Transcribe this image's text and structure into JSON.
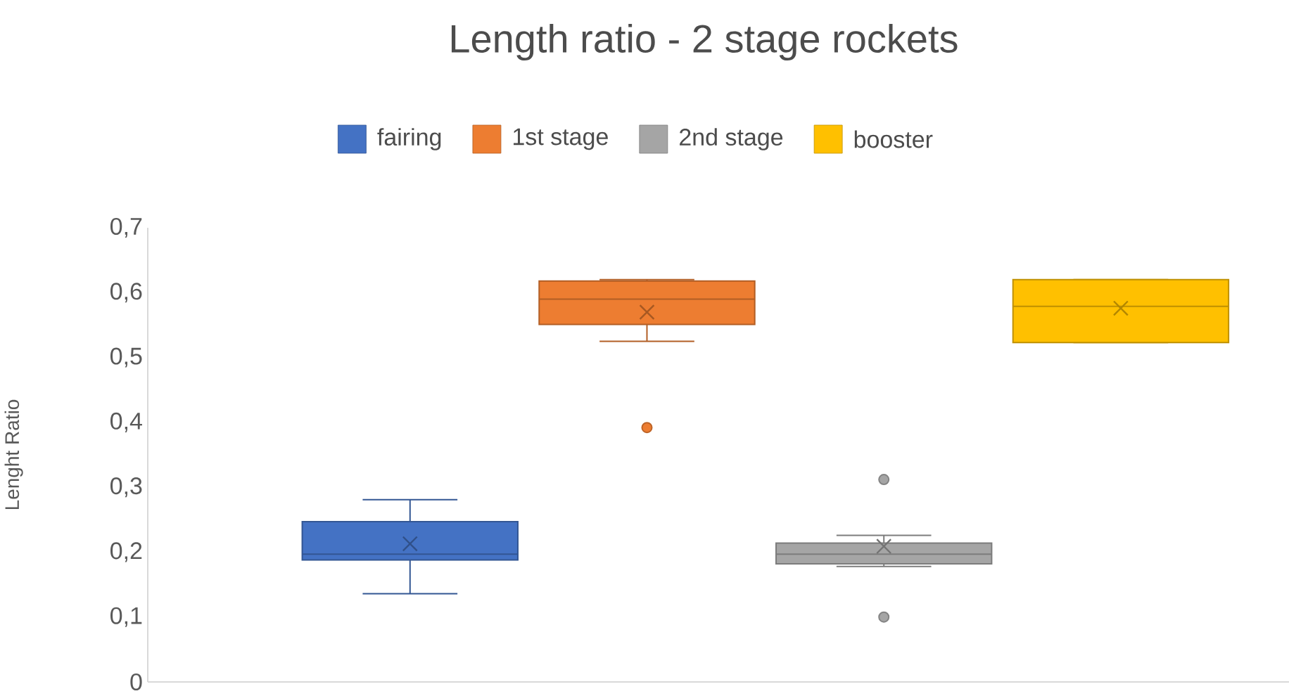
{
  "chart_data": {
    "type": "box",
    "title": "Length ratio - 2 stage rockets",
    "ylabel": "Lenght Ratio",
    "categories": [
      null
    ],
    "series": [
      {
        "name": "fairing",
        "color": "#4472c4",
        "boxes": [
          {
            "low": 0.136,
            "q1": 0.188,
            "median": 0.197,
            "q3": 0.247,
            "high": 0.281,
            "mean": 0.213
          }
        ]
      },
      {
        "name": "1st stage",
        "color": "#ed7d31",
        "boxes": [
          {
            "low": 0.525,
            "q1": 0.551,
            "median": 0.59,
            "q3": 0.618,
            "high": 0.62,
            "mean": 0.57,
            "outliers": [
              0.392
            ]
          }
        ]
      },
      {
        "name": "2nd stage",
        "color": "#a5a5a5",
        "boxes": [
          {
            "low": 0.178,
            "q1": 0.182,
            "median": 0.197,
            "q3": 0.214,
            "high": 0.226,
            "mean": 0.209,
            "outliers": [
              0.312,
              0.1
            ]
          }
        ]
      },
      {
        "name": "booster",
        "color": "#ffc000",
        "boxes": [
          {
            "low": 0.523,
            "q1": 0.523,
            "median": 0.579,
            "q3": 0.62,
            "high": 0.62,
            "mean": 0.576
          }
        ]
      }
    ],
    "ylim": [
      0,
      0.7
    ],
    "yticks": [
      0,
      {
        "value": 0.1,
        "label": "0,1"
      },
      {
        "value": 0.2,
        "label": "0,2"
      },
      {
        "value": 0.3,
        "label": "0,3"
      },
      {
        "value": 0.4,
        "label": "0,4"
      },
      {
        "value": 0.5,
        "label": "0,5"
      },
      {
        "value": 0.6,
        "label": "0,6"
      },
      {
        "value": 0.7,
        "label": "0,7"
      }
    ],
    "legend": "top",
    "grid": false,
    "tick_labels": "y"
  }
}
